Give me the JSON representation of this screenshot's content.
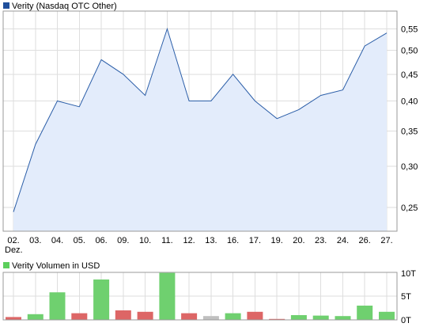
{
  "colors": {
    "price_line": "#2b5ea8",
    "price_fill": "#e3ecfb",
    "price_swatch": "#1f4f9c",
    "volume_swatch": "#5ccf5c",
    "up": "#6fd06f",
    "down": "#dd6666",
    "flat": "#c0c0c0",
    "grid": "#dedede",
    "frame": "#9a9a9a"
  },
  "chart_data": [
    {
      "type": "area",
      "legend": "Verity (Nasdaq OTC Other)",
      "legend_position": "top-left",
      "grid": true,
      "y_axis_side": "right",
      "y_scale": "log",
      "categories": [
        "02.",
        "03.",
        "04.",
        "05.",
        "06.",
        "09.",
        "10.",
        "11.",
        "12.",
        "13.",
        "16.",
        "17.",
        "19.",
        "20.",
        "23.",
        "24.",
        "26.",
        "27."
      ],
      "x_sublabel": "Dez.",
      "series": [
        {
          "name": "Verity (Nasdaq OTC Other)",
          "values": [
            0.245,
            0.33,
            0.4,
            0.39,
            0.48,
            0.45,
            0.41,
            0.55,
            0.4,
            0.4,
            0.45,
            0.4,
            0.37,
            0.385,
            0.41,
            0.42,
            0.51,
            0.54
          ]
        }
      ],
      "ylim": [
        0.225,
        0.595
      ],
      "yticks": [
        0.25,
        0.3,
        0.35,
        0.4,
        0.45,
        0.5,
        0.55
      ],
      "ytick_labels": [
        "0,25",
        "0,30",
        "0,35",
        "0,40",
        "0,45",
        "0,50",
        "0,55"
      ]
    },
    {
      "type": "bar",
      "legend": "Verity Volumen in USD",
      "legend_position": "top-left",
      "grid": true,
      "y_axis_side": "right",
      "categories": [
        "02.",
        "03.",
        "04.",
        "05.",
        "06.",
        "09.",
        "10.",
        "11.",
        "12.",
        "13.",
        "16.",
        "17.",
        "19.",
        "20.",
        "23.",
        "24.",
        "26.",
        "27."
      ],
      "series": [
        {
          "name": "Verity Volumen in USD",
          "values": [
            0.6,
            1.2,
            5.8,
            1.4,
            8.5,
            2.0,
            1.7,
            9.9,
            1.4,
            0.8,
            1.4,
            1.7,
            0.2,
            1.0,
            0.9,
            0.8,
            3.0,
            1.7
          ],
          "direction": [
            "down",
            "up",
            "up",
            "down",
            "up",
            "down",
            "down",
            "up",
            "down",
            "flat",
            "up",
            "down",
            "down",
            "up",
            "up",
            "up",
            "up",
            "up"
          ]
        }
      ],
      "ylim": [
        0,
        10
      ],
      "yticks": [
        0,
        5,
        10
      ],
      "ytick_labels": [
        "0T",
        "5T",
        "10T"
      ]
    }
  ]
}
